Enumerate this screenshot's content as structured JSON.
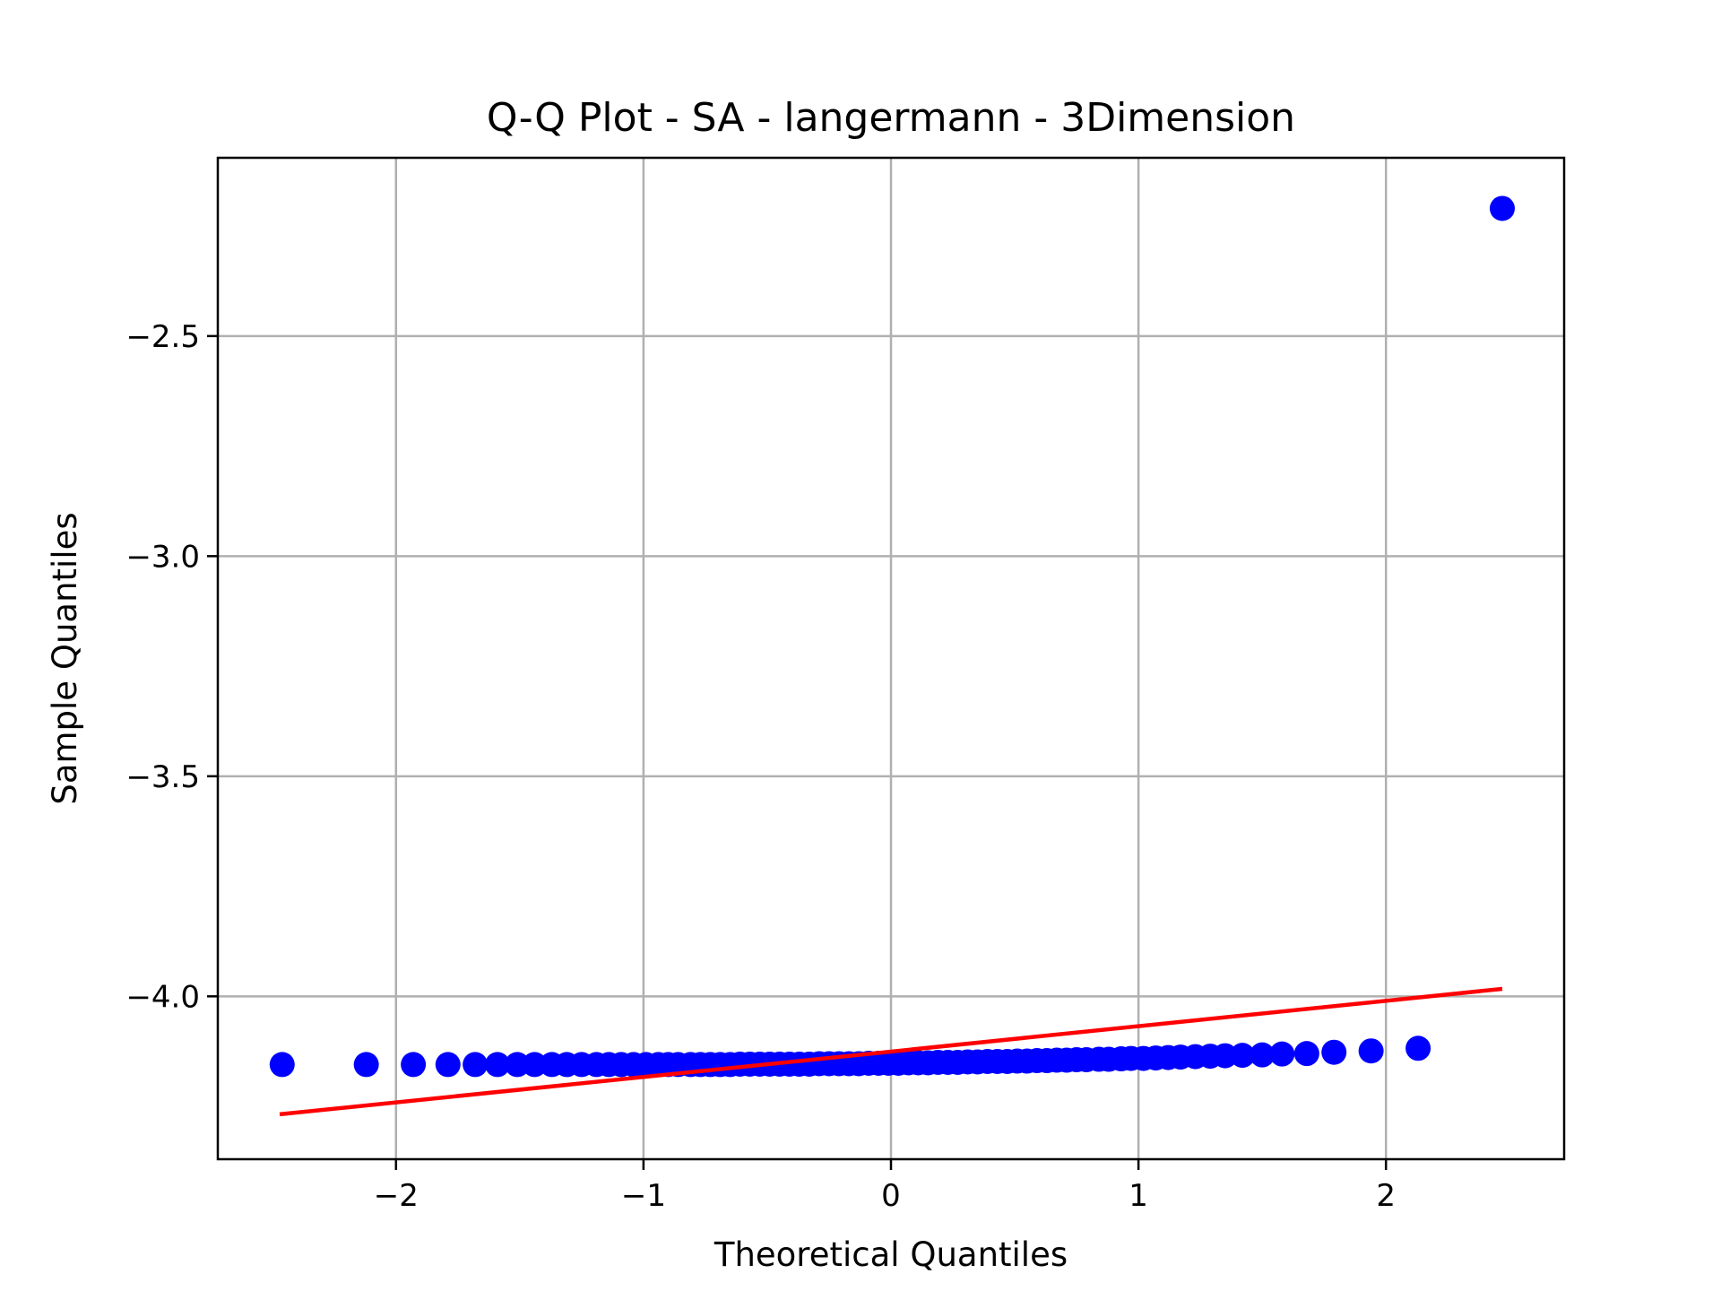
{
  "chart_data": {
    "type": "scatter",
    "title": "Q-Q Plot - SA - langermann - 3Dimension",
    "xlabel": "Theoretical Quantiles",
    "ylabel": "Sample Quantiles",
    "xlim": [
      -2.72,
      2.72
    ],
    "ylim": [
      -4.37,
      -2.095
    ],
    "x_ticks": [
      -2,
      -1,
      0,
      1,
      2
    ],
    "x_tick_labels": [
      "−2",
      "−1",
      "0",
      "1",
      "2"
    ],
    "y_ticks": [
      -2.5,
      -3.0,
      -3.5,
      -4.0
    ],
    "y_tick_labels": [
      "−2.5",
      "−3.0",
      "−3.5",
      "−4.0"
    ],
    "grid": true,
    "legend": "none",
    "series": [
      {
        "kind": "points",
        "color": "#0000ff",
        "x": [
          -2.46,
          -2.12,
          -1.93,
          -1.79,
          -1.68,
          -1.59,
          -1.51,
          -1.44,
          -1.37,
          -1.31,
          -1.25,
          -1.19,
          -1.14,
          -1.09,
          -1.04,
          -0.99,
          -0.94,
          -0.9,
          -0.86,
          -0.81,
          -0.77,
          -0.73,
          -0.69,
          -0.65,
          -0.61,
          -0.57,
          -0.53,
          -0.49,
          -0.45,
          -0.41,
          -0.37,
          -0.33,
          -0.29,
          -0.25,
          -0.21,
          -0.17,
          -0.13,
          -0.09,
          -0.05,
          -0.01,
          0.03,
          0.07,
          0.11,
          0.15,
          0.19,
          0.23,
          0.27,
          0.31,
          0.35,
          0.39,
          0.43,
          0.47,
          0.51,
          0.55,
          0.59,
          0.63,
          0.67,
          0.71,
          0.75,
          0.79,
          0.84,
          0.88,
          0.93,
          0.97,
          1.02,
          1.07,
          1.12,
          1.17,
          1.23,
          1.29,
          1.35,
          1.42,
          1.5,
          1.58,
          1.68,
          1.79,
          1.94,
          2.13,
          2.47
        ],
        "y": [
          -4.155,
          -4.155,
          -4.155,
          -4.155,
          -4.155,
          -4.155,
          -4.155,
          -4.155,
          -4.155,
          -4.155,
          -4.155,
          -4.155,
          -4.155,
          -4.155,
          -4.155,
          -4.155,
          -4.155,
          -4.155,
          -4.155,
          -4.155,
          -4.155,
          -4.155,
          -4.155,
          -4.155,
          -4.154,
          -4.154,
          -4.154,
          -4.154,
          -4.154,
          -4.154,
          -4.154,
          -4.154,
          -4.153,
          -4.153,
          -4.153,
          -4.153,
          -4.153,
          -4.152,
          -4.152,
          -4.152,
          -4.152,
          -4.151,
          -4.151,
          -4.151,
          -4.15,
          -4.15,
          -4.15,
          -4.149,
          -4.149,
          -4.148,
          -4.148,
          -4.148,
          -4.147,
          -4.147,
          -4.146,
          -4.146,
          -4.145,
          -4.145,
          -4.144,
          -4.144,
          -4.143,
          -4.143,
          -4.142,
          -4.141,
          -4.141,
          -4.14,
          -4.139,
          -4.138,
          -4.137,
          -4.136,
          -4.135,
          -4.134,
          -4.133,
          -4.131,
          -4.13,
          -4.127,
          -4.124,
          -4.118,
          -2.21
        ]
      },
      {
        "kind": "line",
        "color": "#ff0000",
        "x": [
          -2.47,
          2.47
        ],
        "y": [
          -4.268,
          -3.983
        ]
      }
    ]
  }
}
